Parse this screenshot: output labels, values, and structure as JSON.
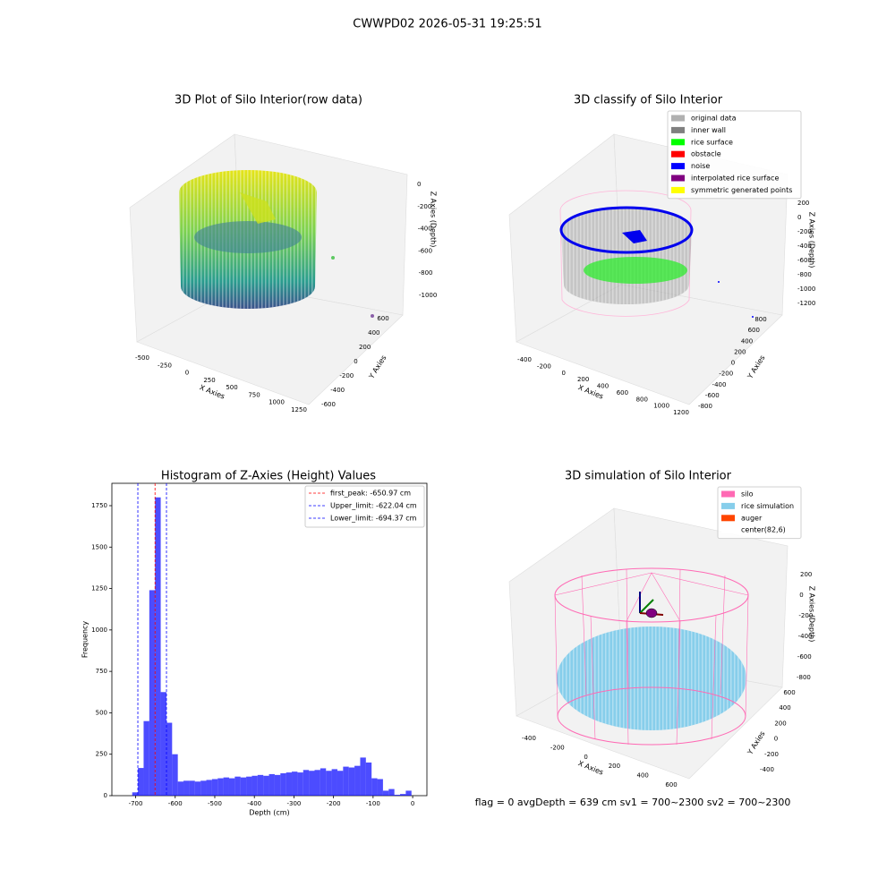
{
  "suptitle": "CWWPD02 2026-05-31 19:25:51",
  "footer": "flag = 0     avgDepth = 639 cm  sv1 = 700~2300  sv2 = 700~2300",
  "chart_data": [
    {
      "type": "scatter3d",
      "title": "3D Plot of Silo Interior(row data)",
      "xlabel": "X Axies",
      "ylabel": "Y Axies",
      "zlabel": "Z Axies (Depth)",
      "xticks": [
        -500,
        -250,
        0,
        250,
        500,
        750,
        1000,
        1250
      ],
      "yticks": [
        -600,
        -400,
        -200,
        0,
        200,
        400,
        600
      ],
      "zticks": [
        0,
        -200,
        -400,
        -600,
        -800,
        -1000
      ]
    },
    {
      "type": "scatter3d",
      "title": "3D classify of Silo Interior",
      "xlabel": "X Axies",
      "ylabel": "Y Axies",
      "zlabel": "Z Axies (Depth)",
      "xticks": [
        -400,
        -200,
        0,
        200,
        400,
        600,
        800,
        1000,
        1200
      ],
      "yticks": [
        -800,
        -600,
        -400,
        -200,
        0,
        200,
        400,
        600,
        800
      ],
      "zticks": [
        200,
        0,
        -200,
        -400,
        -600,
        -800,
        -1000,
        -1200
      ],
      "legend": [
        {
          "name": "original data",
          "color": "#b0b0b0"
        },
        {
          "name": "inner wall",
          "color": "#808080"
        },
        {
          "name": "rice surface",
          "color": "#00ff00"
        },
        {
          "name": "obstacle",
          "color": "#ff0000"
        },
        {
          "name": "noise",
          "color": "#0000ff"
        },
        {
          "name": "interpolated rice surface",
          "color": "#800080"
        },
        {
          "name": "symmetric generated points",
          "color": "#ffff00"
        }
      ]
    },
    {
      "type": "histogram",
      "title": "Histogram of Z-Axies (Height) Values",
      "xlabel": "Depth (cm)",
      "ylabel": "Frequency",
      "color": "#0000ff",
      "bins": [
        -708.6,
        -694.2,
        -679.8,
        -665.4,
        -651,
        -636.6,
        -622.2,
        -607.8,
        -593.4,
        -579,
        -564.6,
        -550.2,
        -535.8,
        -521.4,
        -507,
        -492.6,
        -478.2,
        -463.8,
        -449.4,
        -435,
        -420.6,
        -406.2,
        -391.8,
        -377.4,
        -363,
        -348.6,
        -334.2,
        -319.8,
        -305.4,
        -291,
        -276.6,
        -262.2,
        -247.8,
        -233.4,
        -219,
        -204.6,
        -190.2,
        -175.8,
        -161.4,
        -147,
        -132.6,
        -118.2,
        -103.8,
        -89.4,
        -75,
        -60.6,
        -46.2,
        -31.8,
        -17.4,
        -3
      ],
      "values": [
        20,
        167,
        450,
        1240,
        1800,
        625,
        440,
        250,
        85,
        90,
        90,
        85,
        90,
        95,
        100,
        105,
        110,
        105,
        115,
        110,
        115,
        120,
        125,
        120,
        130,
        125,
        135,
        140,
        145,
        140,
        155,
        150,
        155,
        165,
        150,
        160,
        150,
        175,
        170,
        180,
        230,
        200,
        105,
        100,
        30,
        40,
        5,
        10,
        30
      ],
      "xlim": [
        -760,
        36
      ],
      "ylim": [
        0,
        1885
      ],
      "xticks": [
        -700,
        -600,
        -500,
        -400,
        -300,
        -200,
        -100,
        0
      ],
      "yticks": [
        0,
        250,
        500,
        750,
        1000,
        1250,
        1500,
        1750
      ],
      "vlines": [
        {
          "name": "first_peak: -650.97 cm",
          "value": -650.97,
          "color": "#ff0000"
        },
        {
          "name": "Upper_limit: -622.04 cm",
          "value": -622.04,
          "color": "#0000ff"
        },
        {
          "name": "Lower_limit: -694.37 cm",
          "value": -694.37,
          "color": "#0000ff"
        }
      ]
    },
    {
      "type": "scatter3d",
      "title": "3D simulation of Silo Interior",
      "xlabel": "X Axies",
      "ylabel": "Y Axies",
      "zlabel": "Z Axies (Depth)",
      "xticks": [
        -400,
        -200,
        0,
        200,
        400,
        600
      ],
      "yticks": [
        -400,
        -200,
        0,
        200,
        400,
        600
      ],
      "zticks": [
        200,
        0,
        -200,
        -400,
        -600,
        -800
      ],
      "legend": [
        {
          "name": "silo",
          "color": "#ff69b4"
        },
        {
          "name": "rice simulation",
          "color": "#87ceeb"
        },
        {
          "name": "auger",
          "color": "#ff4500"
        },
        {
          "name": "center(82,6)",
          "color": "#ffffff"
        }
      ]
    }
  ]
}
